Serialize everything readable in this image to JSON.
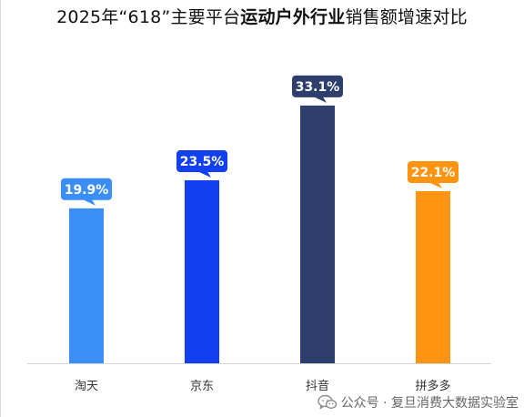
{
  "title": {
    "prefix": "2025年“618”主要平台",
    "emphasis": "运动户外行业",
    "suffix": "销售额增速对比"
  },
  "chart_data": {
    "type": "bar",
    "categories": [
      "淘天",
      "京东",
      "抖音",
      "拼多多"
    ],
    "values": [
      19.9,
      23.5,
      33.1,
      22.1
    ],
    "labels": [
      "19.9%",
      "23.5%",
      "33.1%",
      "22.1%"
    ],
    "colors": [
      "#3a8ef6",
      "#1240f0",
      "#2e3f6e",
      "#ff9410"
    ],
    "ylim": [
      0,
      37.3
    ],
    "unit": "%",
    "grid": false,
    "legend": "none",
    "data_label_style": "callout-bubble"
  },
  "watermark": {
    "text": "公众号 · 复旦消费大数据实验室",
    "icon": "wechat-icon"
  }
}
